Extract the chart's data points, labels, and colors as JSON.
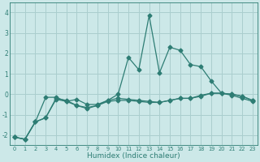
{
  "xlabel": "Humidex (Indice chaleur)",
  "x": [
    0,
    1,
    2,
    3,
    4,
    5,
    6,
    7,
    8,
    9,
    10,
    11,
    12,
    13,
    14,
    15,
    16,
    17,
    18,
    19,
    20,
    21,
    22,
    23
  ],
  "line1_y": [
    -2.1,
    -2.2,
    -1.35,
    -1.15,
    -0.2,
    -0.3,
    -0.55,
    -0.7,
    -0.55,
    -0.3,
    0.0,
    1.8,
    1.2,
    3.85,
    1.05,
    2.3,
    2.15,
    1.45,
    1.35,
    0.65,
    0.05,
    -0.05,
    -0.2,
    -0.35
  ],
  "line2_y": [
    -2.1,
    -2.2,
    -1.35,
    -0.15,
    -0.15,
    -0.35,
    -0.25,
    -0.5,
    -0.5,
    -0.3,
    -0.2,
    -0.25,
    -0.3,
    -0.35,
    -0.4,
    -0.3,
    -0.2,
    -0.2,
    -0.05,
    0.05,
    0.05,
    0.0,
    -0.1,
    -0.3
  ],
  "line3_y": [
    -2.1,
    -2.2,
    -1.35,
    -1.15,
    -0.25,
    -0.35,
    -0.55,
    -0.65,
    -0.55,
    -0.35,
    -0.3,
    -0.3,
    -0.35,
    -0.4,
    -0.4,
    -0.3,
    -0.2,
    -0.2,
    -0.1,
    0.05,
    0.05,
    0.0,
    -0.1,
    -0.3
  ],
  "color": "#2e7d74",
  "bg_color": "#cce8e8",
  "grid_color": "#aacece",
  "ylim": [
    -2.5,
    4.5
  ],
  "xlim": [
    -0.5,
    23.5
  ],
  "yticks": [
    -2,
    -1,
    0,
    1,
    2,
    3,
    4
  ]
}
